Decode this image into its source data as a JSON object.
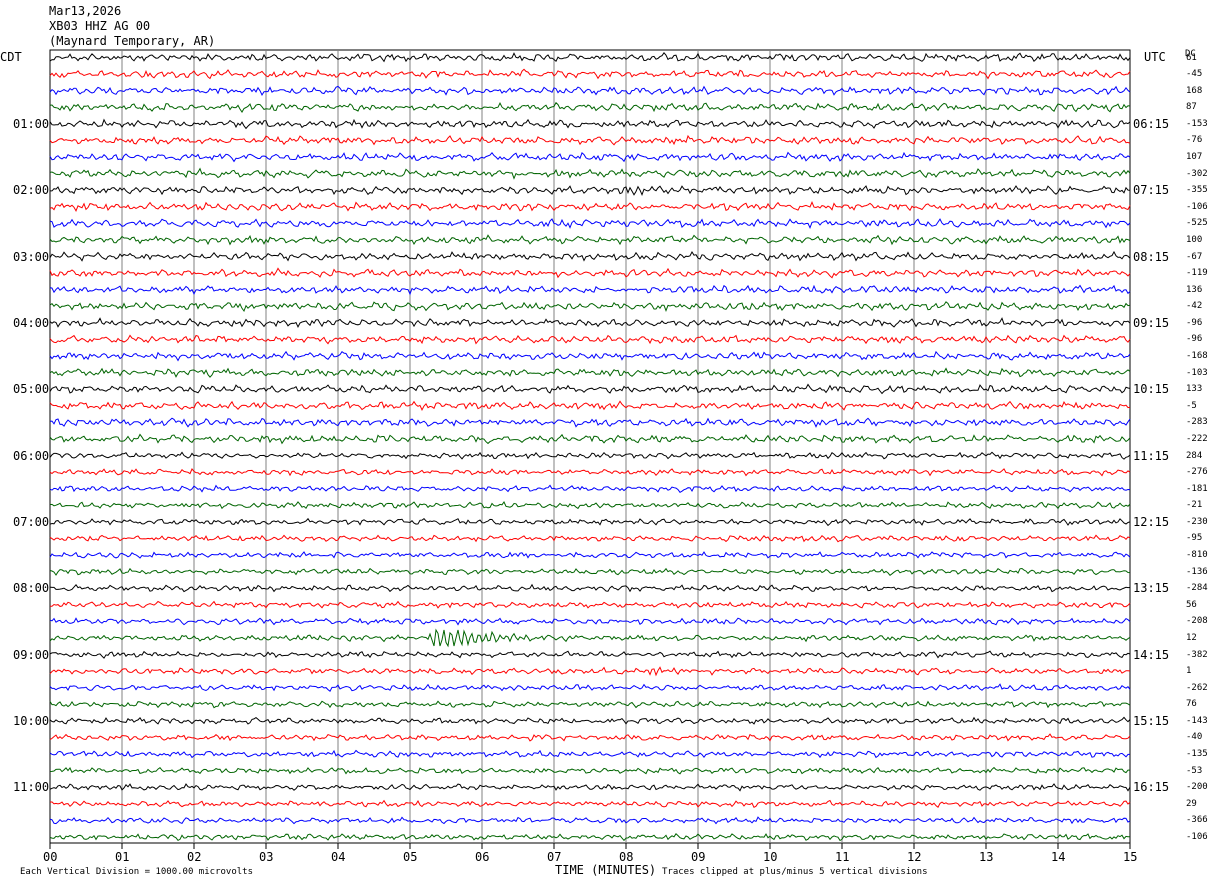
{
  "header": {
    "date": "Mar13,2026",
    "station": "XB03 HHZ AG 00",
    "location": "(Maynard Temporary, AR)"
  },
  "left_zone": "CDT",
  "right_zone": "UTC",
  "dc_label": "DC",
  "footer": {
    "scale_note": "Each Vertical Division = 1000.00 microvolts",
    "xlabel": "TIME (MINUTES)",
    "clip_note": "Traces clipped at plus/minus 5 vertical divisions"
  },
  "colors": {
    "trace_cycle": [
      "#000000",
      "#ff0000",
      "#0000ff",
      "#006400"
    ],
    "grid": "#808080"
  },
  "chart_data": {
    "type": "line",
    "title": "",
    "xlabel": "TIME (MINUTES)",
    "xlim": [
      0,
      15
    ],
    "x_ticks": [
      "00",
      "01",
      "02",
      "03",
      "04",
      "05",
      "06",
      "07",
      "08",
      "09",
      "10",
      "11",
      "12",
      "13",
      "14",
      "15"
    ],
    "trace_count": 48,
    "trace_minutes": 15,
    "left_hour_labels": [
      "01:00",
      "02:00",
      "03:00",
      "04:00",
      "05:00",
      "06:00",
      "07:00",
      "08:00",
      "09:00",
      "10:00",
      "11:00"
    ],
    "right_hour_labels": [
      "06:15",
      "07:15",
      "08:15",
      "09:15",
      "10:15",
      "11:15",
      "12:15",
      "13:15",
      "14:15",
      "15:15",
      "16:15"
    ],
    "hour_label_first_trace": 4,
    "dc_offsets": [
      "61",
      "-45",
      "168",
      "87",
      "-153",
      "-76",
      "107",
      "-302",
      "-355",
      "-106",
      "-525",
      "100",
      "-67",
      "-119",
      "136",
      "-42",
      "-96",
      "-96",
      "-168",
      "-103",
      "133",
      "-5",
      "-283",
      "-222",
      "284",
      "-276",
      "-181",
      "-21",
      "-230",
      "-95",
      "-810",
      "-136",
      "-284",
      "56",
      "-208",
      "12",
      "-382",
      "1",
      "-262",
      "76",
      "-143",
      "-40",
      "-135",
      "-53",
      "-200",
      "29",
      "-366",
      "-106"
    ],
    "events": [
      {
        "trace": 35,
        "minute": 5.3,
        "amplitude": "large",
        "label": ""
      },
      {
        "trace": 37,
        "minute": 8.3,
        "amplitude": "medium",
        "label": ""
      },
      {
        "trace": 8,
        "minute": 7.9,
        "amplitude": "small",
        "label": ""
      }
    ],
    "clip_divisions": 5,
    "vertical_division_microvolts": 1000.0
  }
}
